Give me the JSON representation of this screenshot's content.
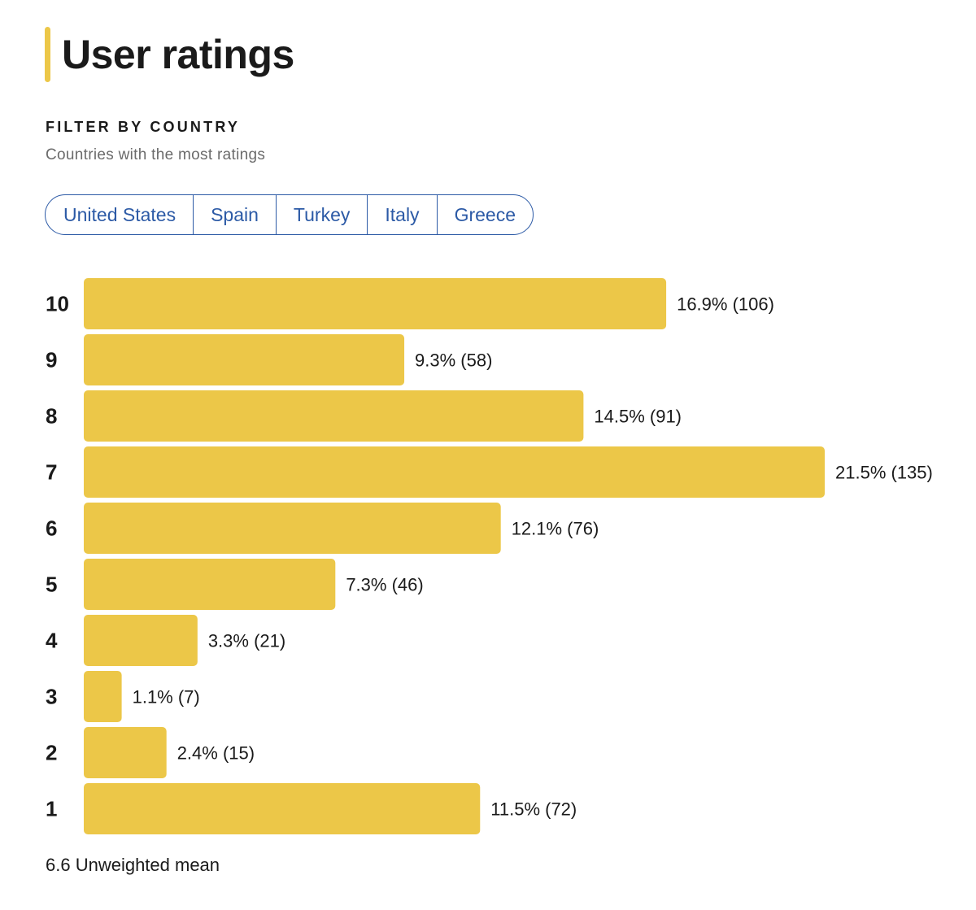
{
  "page": {
    "title": "User ratings",
    "filter_label": "FILTER BY COUNTRY",
    "filter_subtitle": "Countries with the most ratings",
    "countries": [
      "United States",
      "Spain",
      "Turkey",
      "Italy",
      "Greece"
    ],
    "mean_text": "6.6 Unweighted mean"
  },
  "colors": {
    "accent": "#ecc748",
    "bar": "#ecc748",
    "link": "#2c5aa6"
  },
  "chart_data": {
    "type": "bar",
    "orientation": "horizontal",
    "categories": [
      "10",
      "9",
      "8",
      "7",
      "6",
      "5",
      "4",
      "3",
      "2",
      "1"
    ],
    "values": [
      16.9,
      9.3,
      14.5,
      21.5,
      12.1,
      7.3,
      3.3,
      1.1,
      2.4,
      11.5
    ],
    "counts": [
      106,
      58,
      91,
      135,
      76,
      46,
      21,
      7,
      15,
      72
    ],
    "labels": [
      "16.9% (106)",
      "9.3% (58)",
      "14.5% (91)",
      "21.5% (135)",
      "12.1% (76)",
      "7.3% (46)",
      "3.3% (21)",
      "1.1% (7)",
      "2.4% (15)",
      "11.5% (72)"
    ],
    "unit": "%",
    "grid": false,
    "legend": "none"
  }
}
